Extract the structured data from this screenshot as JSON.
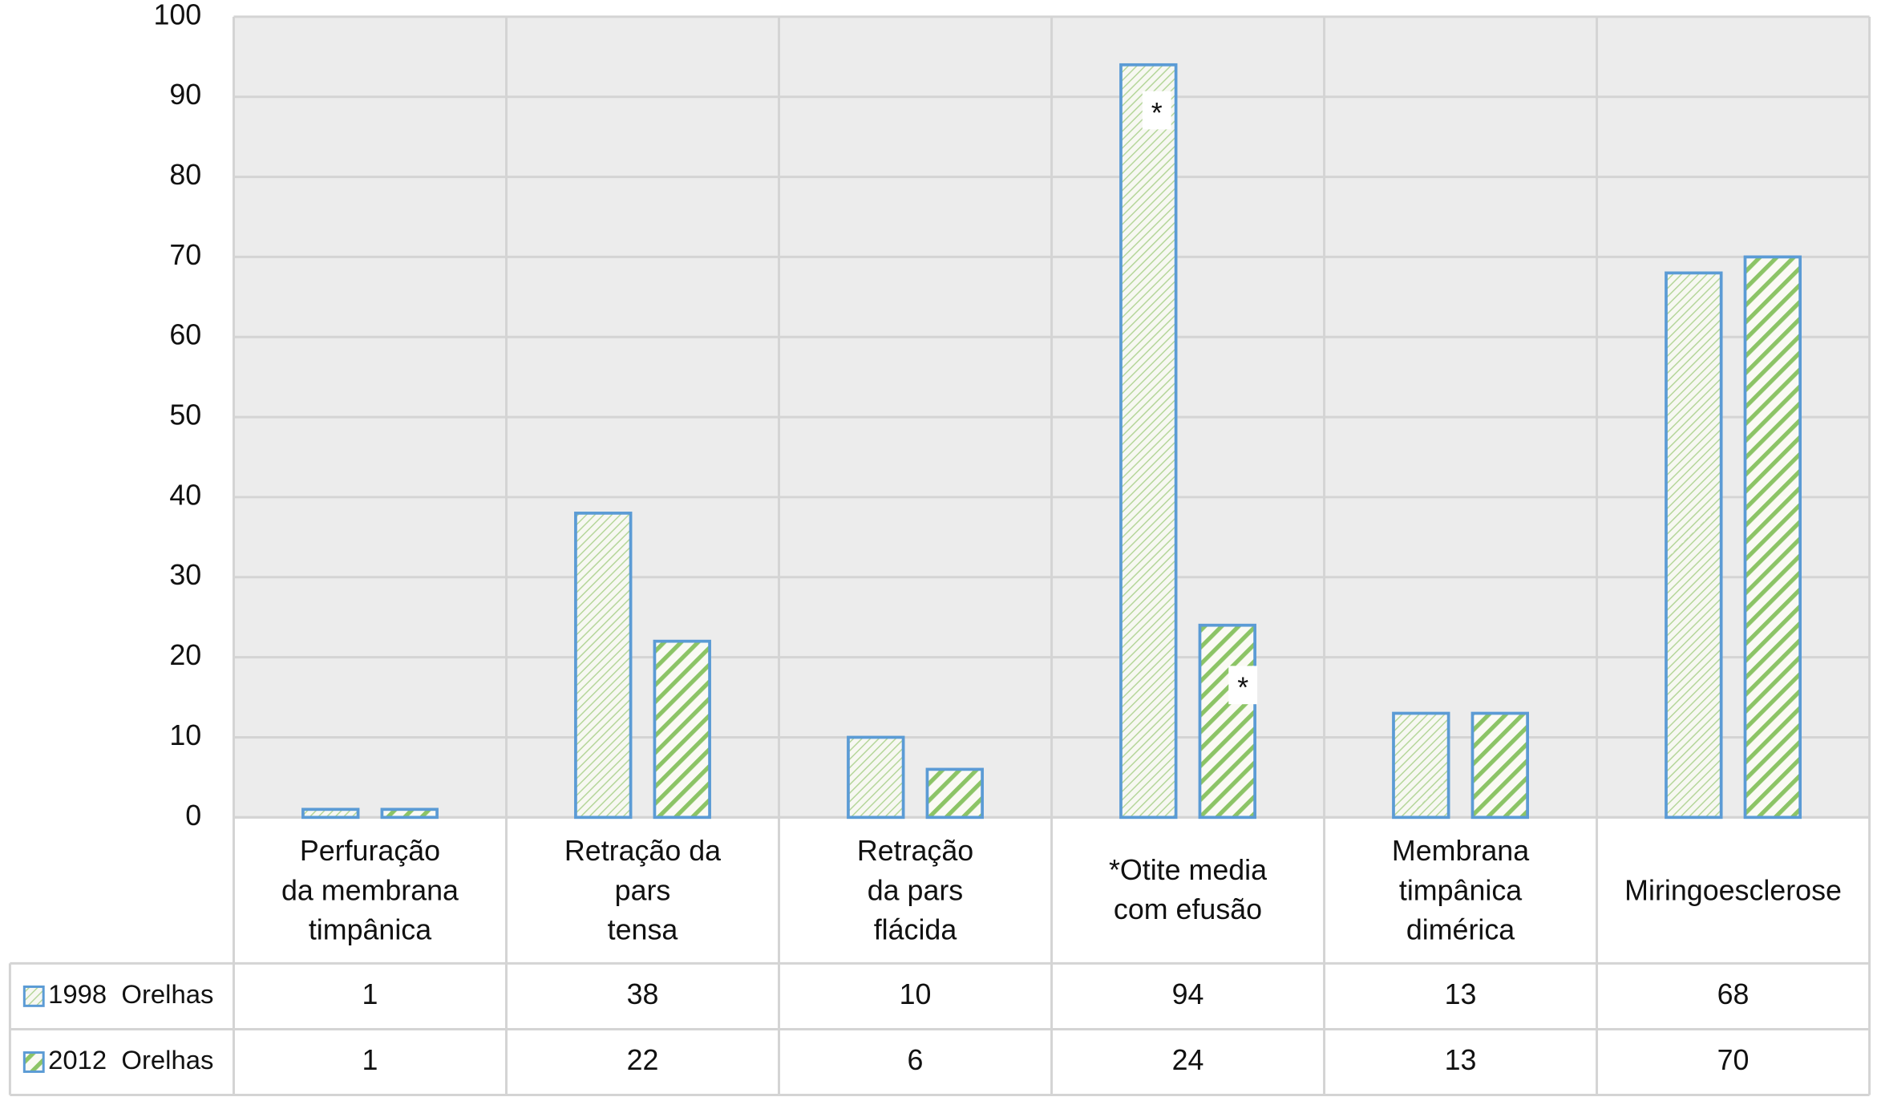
{
  "chart_data": {
    "type": "bar",
    "categories": [
      "Perfuração\nda membrana\ntimpânica",
      "Retração da\npars\ntensa",
      "Retração\nda pars\nflácida",
      "*Otite media\ncom efusão",
      "Membrana\ntimpânica\ndimérica",
      "Miringoesclerose"
    ],
    "series": [
      {
        "name": "1998  Orelhas",
        "color": "#5b9bd5",
        "fill_color": "#b5d69a",
        "values": [
          1,
          38,
          10,
          94,
          13,
          68
        ],
        "annotations": [
          null,
          null,
          null,
          "*",
          null,
          null
        ]
      },
      {
        "name": "2012  Orelhas",
        "color": "#5b9bd5",
        "fill_color": "#8cc466",
        "values": [
          1,
          22,
          6,
          24,
          13,
          70
        ],
        "annotations": [
          null,
          null,
          null,
          "*",
          null,
          null
        ]
      }
    ],
    "ylim": [
      0,
      100
    ],
    "yticks": [
      0,
      10,
      20,
      30,
      40,
      50,
      60,
      70,
      80,
      90,
      100
    ],
    "grid": true
  }
}
